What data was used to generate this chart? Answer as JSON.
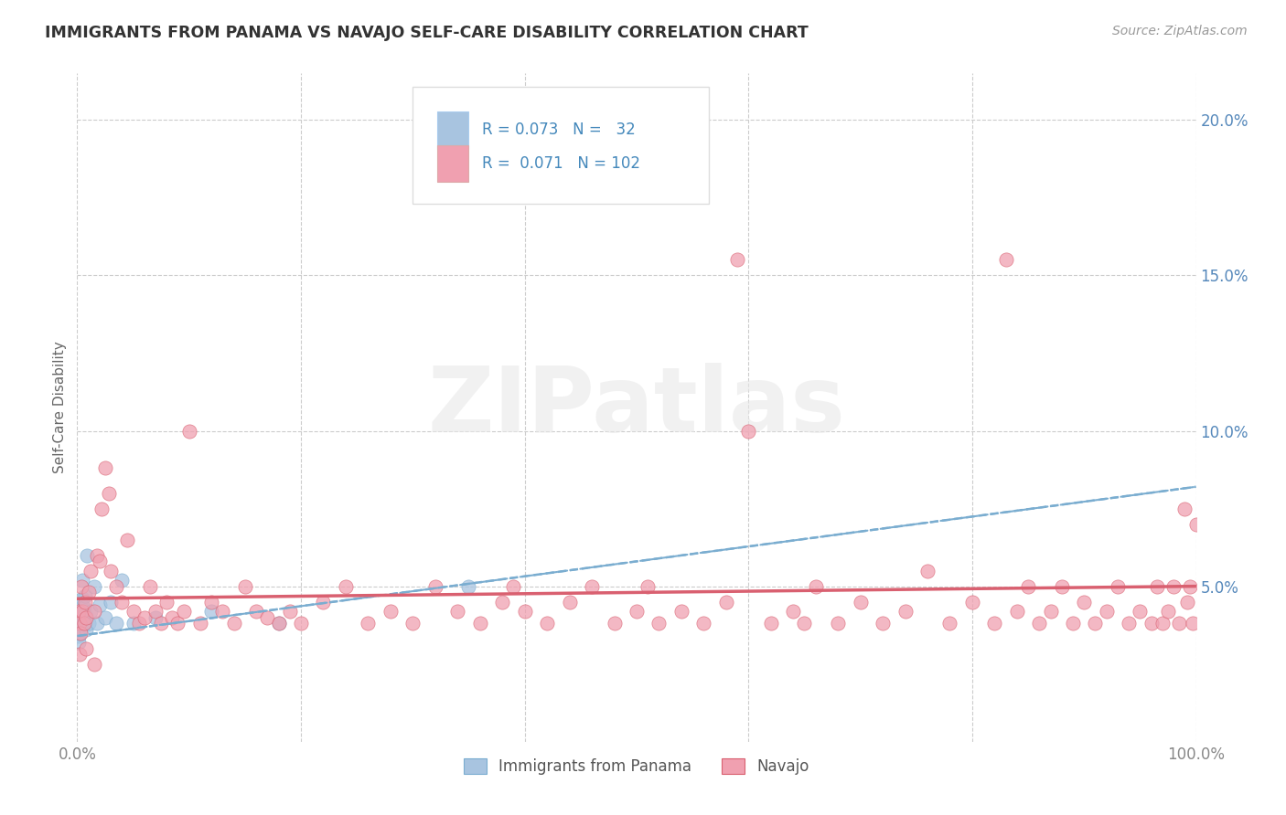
{
  "title": "IMMIGRANTS FROM PANAMA VS NAVAJO SELF-CARE DISABILITY CORRELATION CHART",
  "source": "Source: ZipAtlas.com",
  "ylabel": "Self-Care Disability",
  "xlim": [
    0,
    1.0
  ],
  "ylim": [
    0,
    0.215
  ],
  "xtick_labels": [
    "0.0%",
    "",
    "",
    "",
    "",
    "100.0%"
  ],
  "xtick_vals": [
    0.0,
    0.2,
    0.4,
    0.6,
    0.8,
    1.0
  ],
  "ytick_labels": [
    "5.0%",
    "10.0%",
    "15.0%",
    "20.0%"
  ],
  "ytick_vals": [
    0.05,
    0.1,
    0.15,
    0.2
  ],
  "legend_label1": "Immigrants from Panama",
  "legend_label2": "Navajo",
  "color_blue": "#A8C4E0",
  "color_pink": "#F0A0B0",
  "color_line_blue": "#7AADD0",
  "color_line_pink": "#D96070",
  "ytick_color": "#5588BB",
  "watermark_text": "ZIPatlas",
  "background_color": "#FFFFFF",
  "title_color": "#333333",
  "axis_label_color": "#666666",
  "grid_color": "#CCCCCC",
  "legend_text_color": "#4488BB",
  "blue_points": [
    [
      0.001,
      0.034
    ],
    [
      0.001,
      0.032
    ],
    [
      0.001,
      0.038
    ],
    [
      0.002,
      0.035
    ],
    [
      0.002,
      0.04
    ],
    [
      0.002,
      0.042
    ],
    [
      0.003,
      0.038
    ],
    [
      0.003,
      0.036
    ],
    [
      0.004,
      0.044
    ],
    [
      0.004,
      0.04
    ],
    [
      0.005,
      0.046
    ],
    [
      0.005,
      0.052
    ],
    [
      0.005,
      0.038
    ],
    [
      0.006,
      0.043
    ],
    [
      0.007,
      0.047
    ],
    [
      0.007,
      0.041
    ],
    [
      0.008,
      0.036
    ],
    [
      0.009,
      0.06
    ],
    [
      0.01,
      0.038
    ],
    [
      0.012,
      0.042
    ],
    [
      0.015,
      0.05
    ],
    [
      0.018,
      0.038
    ],
    [
      0.02,
      0.044
    ],
    [
      0.025,
      0.04
    ],
    [
      0.03,
      0.045
    ],
    [
      0.035,
      0.038
    ],
    [
      0.04,
      0.052
    ],
    [
      0.05,
      0.038
    ],
    [
      0.07,
      0.04
    ],
    [
      0.12,
      0.042
    ],
    [
      0.18,
      0.038
    ],
    [
      0.35,
      0.05
    ]
  ],
  "pink_points": [
    [
      0.001,
      0.042
    ],
    [
      0.002,
      0.038
    ],
    [
      0.003,
      0.035
    ],
    [
      0.004,
      0.05
    ],
    [
      0.005,
      0.042
    ],
    [
      0.006,
      0.038
    ],
    [
      0.007,
      0.045
    ],
    [
      0.008,
      0.04
    ],
    [
      0.01,
      0.048
    ],
    [
      0.012,
      0.055
    ],
    [
      0.015,
      0.042
    ],
    [
      0.018,
      0.06
    ],
    [
      0.02,
      0.058
    ],
    [
      0.022,
      0.075
    ],
    [
      0.025,
      0.088
    ],
    [
      0.028,
      0.08
    ],
    [
      0.03,
      0.055
    ],
    [
      0.035,
      0.05
    ],
    [
      0.04,
      0.045
    ],
    [
      0.045,
      0.065
    ],
    [
      0.05,
      0.042
    ],
    [
      0.055,
      0.038
    ],
    [
      0.06,
      0.04
    ],
    [
      0.065,
      0.05
    ],
    [
      0.07,
      0.042
    ],
    [
      0.075,
      0.038
    ],
    [
      0.08,
      0.045
    ],
    [
      0.085,
      0.04
    ],
    [
      0.09,
      0.038
    ],
    [
      0.095,
      0.042
    ],
    [
      0.1,
      0.1
    ],
    [
      0.11,
      0.038
    ],
    [
      0.12,
      0.045
    ],
    [
      0.13,
      0.042
    ],
    [
      0.14,
      0.038
    ],
    [
      0.15,
      0.05
    ],
    [
      0.16,
      0.042
    ],
    [
      0.17,
      0.04
    ],
    [
      0.18,
      0.038
    ],
    [
      0.19,
      0.042
    ],
    [
      0.2,
      0.038
    ],
    [
      0.22,
      0.045
    ],
    [
      0.24,
      0.05
    ],
    [
      0.26,
      0.038
    ],
    [
      0.28,
      0.042
    ],
    [
      0.3,
      0.038
    ],
    [
      0.32,
      0.05
    ],
    [
      0.34,
      0.042
    ],
    [
      0.36,
      0.038
    ],
    [
      0.38,
      0.045
    ],
    [
      0.39,
      0.05
    ],
    [
      0.4,
      0.042
    ],
    [
      0.42,
      0.038
    ],
    [
      0.44,
      0.045
    ],
    [
      0.46,
      0.05
    ],
    [
      0.48,
      0.038
    ],
    [
      0.5,
      0.042
    ],
    [
      0.51,
      0.05
    ],
    [
      0.52,
      0.038
    ],
    [
      0.54,
      0.042
    ],
    [
      0.56,
      0.038
    ],
    [
      0.58,
      0.045
    ],
    [
      0.59,
      0.155
    ],
    [
      0.6,
      0.1
    ],
    [
      0.62,
      0.038
    ],
    [
      0.64,
      0.042
    ],
    [
      0.65,
      0.038
    ],
    [
      0.66,
      0.05
    ],
    [
      0.68,
      0.038
    ],
    [
      0.7,
      0.045
    ],
    [
      0.72,
      0.038
    ],
    [
      0.74,
      0.042
    ],
    [
      0.76,
      0.055
    ],
    [
      0.78,
      0.038
    ],
    [
      0.8,
      0.045
    ],
    [
      0.82,
      0.038
    ],
    [
      0.83,
      0.155
    ],
    [
      0.84,
      0.042
    ],
    [
      0.85,
      0.05
    ],
    [
      0.86,
      0.038
    ],
    [
      0.87,
      0.042
    ],
    [
      0.88,
      0.05
    ],
    [
      0.89,
      0.038
    ],
    [
      0.9,
      0.045
    ],
    [
      0.91,
      0.038
    ],
    [
      0.92,
      0.042
    ],
    [
      0.93,
      0.05
    ],
    [
      0.94,
      0.038
    ],
    [
      0.95,
      0.042
    ],
    [
      0.96,
      0.038
    ],
    [
      0.965,
      0.05
    ],
    [
      0.97,
      0.038
    ],
    [
      0.975,
      0.042
    ],
    [
      0.98,
      0.05
    ],
    [
      0.985,
      0.038
    ],
    [
      0.99,
      0.075
    ],
    [
      0.992,
      0.045
    ],
    [
      0.995,
      0.05
    ],
    [
      0.997,
      0.038
    ],
    [
      1.0,
      0.07
    ],
    [
      0.002,
      0.028
    ],
    [
      0.008,
      0.03
    ],
    [
      0.015,
      0.025
    ]
  ]
}
